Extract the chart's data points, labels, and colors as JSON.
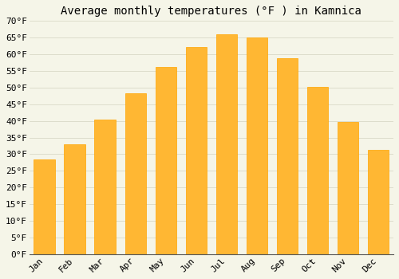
{
  "title": "Average monthly temperatures (°F ) in Kamnica",
  "months": [
    "Jan",
    "Feb",
    "Mar",
    "Apr",
    "May",
    "Jun",
    "Jul",
    "Aug",
    "Sep",
    "Oct",
    "Nov",
    "Dec"
  ],
  "values": [
    28.4,
    33.1,
    40.3,
    48.4,
    56.3,
    62.2,
    66.0,
    65.1,
    58.8,
    50.2,
    39.6,
    31.3
  ],
  "bar_color_light": "#FFB733",
  "bar_color_dark": "#FFA500",
  "background_color": "#f5f5e8",
  "grid_color": "#ddddcc",
  "ylim": [
    0,
    70
  ],
  "ytick_step": 5,
  "title_fontsize": 10,
  "tick_fontsize": 8,
  "font_family": "monospace"
}
